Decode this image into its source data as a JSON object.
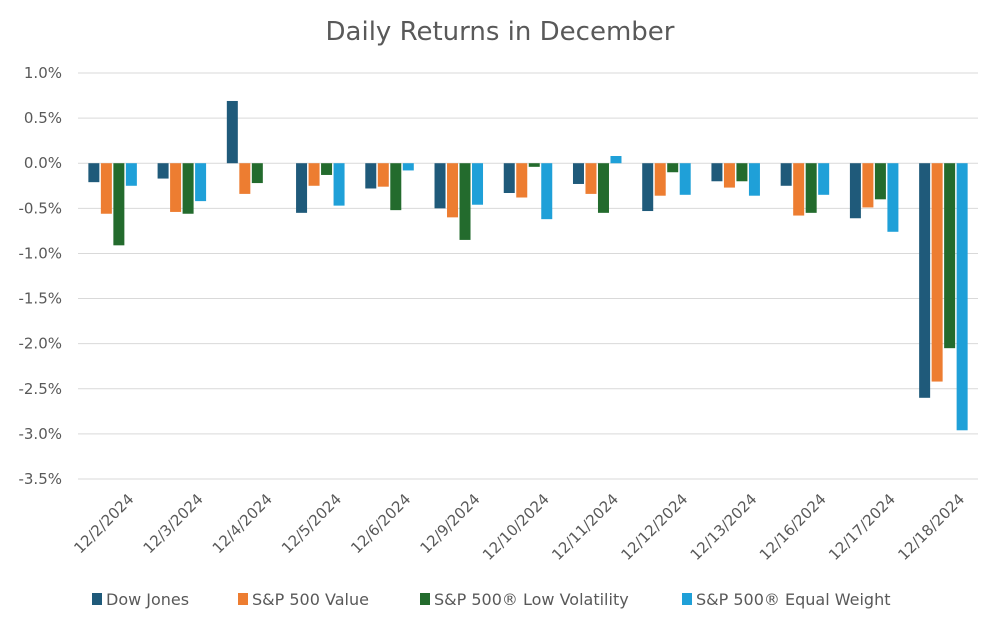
{
  "chart_data": {
    "type": "bar",
    "title": "Daily Returns in December",
    "xlabel": "",
    "ylabel": "",
    "ylim": [
      -3.5,
      1.0
    ],
    "yticks": [
      "1.0%",
      "0.5%",
      "0.0%",
      "-0.5%",
      "-1.0%",
      "-1.5%",
      "-2.0%",
      "-2.5%",
      "-3.0%",
      "-3.5%"
    ],
    "ytick_values": [
      1.0,
      0.5,
      0.0,
      -0.5,
      -1.0,
      -1.5,
      -2.0,
      -2.5,
      -3.0,
      -3.5
    ],
    "grid": true,
    "legend_position": "bottom",
    "categories": [
      "12/2/2024",
      "12/3/2024",
      "12/4/2024",
      "12/5/2024",
      "12/6/2024",
      "12/9/2024",
      "12/10/2024",
      "12/11/2024",
      "12/12/2024",
      "12/13/2024",
      "12/16/2024",
      "12/17/2024",
      "12/18/2024"
    ],
    "series": [
      {
        "name": "Dow Jones",
        "color": "#1f5a7a",
        "values": [
          -0.21,
          -0.17,
          0.69,
          -0.55,
          -0.28,
          -0.5,
          -0.33,
          -0.23,
          -0.53,
          -0.2,
          -0.25,
          -0.61,
          -2.6
        ]
      },
      {
        "name": "S&P 500 Value",
        "color": "#ed7d31",
        "values": [
          -0.56,
          -0.54,
          -0.34,
          -0.25,
          -0.26,
          -0.6,
          -0.38,
          -0.34,
          -0.36,
          -0.27,
          -0.58,
          -0.49,
          -2.42
        ]
      },
      {
        "name": "S&P 500® Low Volatility",
        "color": "#236b2d",
        "values": [
          -0.91,
          -0.56,
          -0.22,
          -0.13,
          -0.52,
          -0.85,
          -0.04,
          -0.55,
          -0.1,
          -0.2,
          -0.55,
          -0.4,
          -2.05
        ]
      },
      {
        "name": "S&P 500® Equal Weight",
        "color": "#1fa0d8",
        "values": [
          -0.25,
          -0.42,
          0.0,
          -0.47,
          -0.08,
          -0.46,
          -0.62,
          0.08,
          -0.35,
          -0.36,
          -0.35,
          -0.76,
          -2.96
        ]
      }
    ]
  }
}
